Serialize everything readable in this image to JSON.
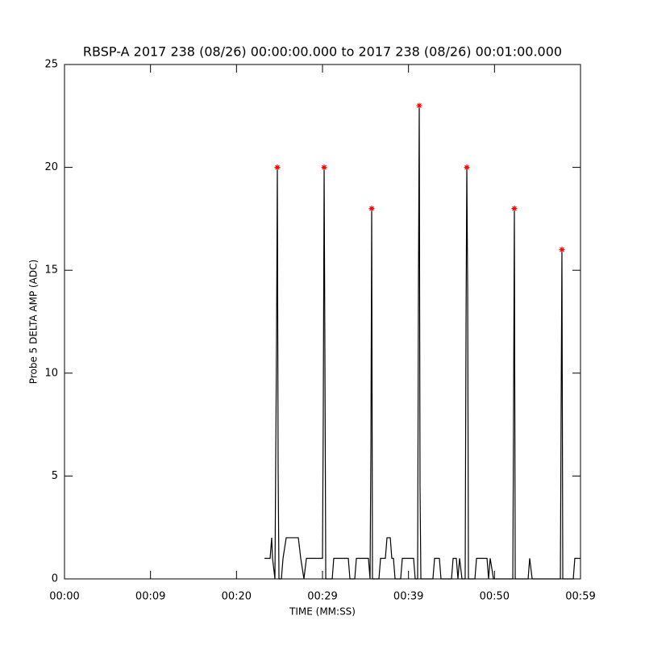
{
  "chart_data": {
    "type": "line",
    "title": "RBSP-A 2017 238 (08/26) 00:00:00.000 to 2017 238 (08/26) 00:01:00.000",
    "xlabel": "TIME (MM:SS)",
    "ylabel": "Probe 5 DELTA AMP (ADC)",
    "xlim": [
      0,
      60
    ],
    "ylim": [
      0,
      25
    ],
    "xticks": [
      {
        "value": 0,
        "label": "00:00"
      },
      {
        "value": 10,
        "label": "00:09"
      },
      {
        "value": 20,
        "label": "00:20"
      },
      {
        "value": 30,
        "label": "00:29"
      },
      {
        "value": 40,
        "label": "00:39"
      },
      {
        "value": 50,
        "label": "00:50"
      },
      {
        "value": 60,
        "label": "00:59"
      }
    ],
    "yticks": [
      0,
      5,
      10,
      15,
      20,
      25
    ],
    "series": [
      {
        "color": "#000000",
        "marker": "none",
        "x": [
          23.25,
          23.91,
          24.09,
          24.19,
          24.47,
          24.66,
          24.75,
          24.84,
          24.94,
          25.22,
          25.41,
          25.78,
          27.19,
          27.47,
          27.84,
          28.13,
          30.0,
          30.09,
          30.19,
          30.28,
          30.38,
          31.13,
          31.31,
          33.0,
          33.19,
          33.75,
          33.94,
          35.34,
          35.53,
          35.63,
          35.72,
          35.81,
          36.56,
          36.75,
          37.31,
          37.5,
          37.88,
          38.06,
          38.25,
          38.44,
          39.09,
          39.28,
          40.59,
          40.78,
          41.06,
          41.16,
          41.25,
          41.34,
          41.44,
          42.84,
          43.03,
          43.59,
          43.78,
          45.0,
          45.19,
          45.56,
          45.75,
          45.94,
          46.22,
          46.59,
          46.69,
          46.78,
          46.88,
          46.97,
          47.72,
          47.91,
          49.13,
          49.31,
          49.5,
          49.88,
          52.13,
          52.22,
          52.31,
          52.41,
          53.91,
          54.09,
          54.38,
          57.66,
          57.75,
          57.84,
          57.94,
          59.16,
          59.34,
          60
        ],
        "values": [
          1,
          1,
          2,
          1,
          0,
          12,
          20,
          5.5,
          0,
          0,
          1,
          2,
          2,
          1,
          0,
          1,
          1,
          8,
          20,
          11,
          0,
          0,
          1,
          1,
          0,
          0,
          1,
          1,
          0,
          6.5,
          18,
          0,
          0,
          1,
          1,
          2,
          2,
          1,
          1,
          0,
          0,
          1,
          1,
          0,
          0,
          14.5,
          23,
          4.5,
          0,
          0,
          1,
          1,
          0,
          0,
          1,
          1,
          0,
          1,
          0,
          0,
          12.5,
          20,
          14,
          0,
          0,
          1,
          1,
          0,
          1,
          0,
          0,
          8.5,
          18,
          0,
          0,
          1,
          0,
          0,
          8.5,
          16,
          0,
          0,
          1,
          1
        ]
      },
      {
        "color": "#ff0000",
        "marker": "asterisk",
        "x": [
          24.75,
          30.19,
          35.72,
          41.25,
          46.78,
          52.31,
          57.84
        ],
        "values": [
          20,
          20,
          18,
          23,
          20,
          18,
          16
        ]
      }
    ]
  }
}
